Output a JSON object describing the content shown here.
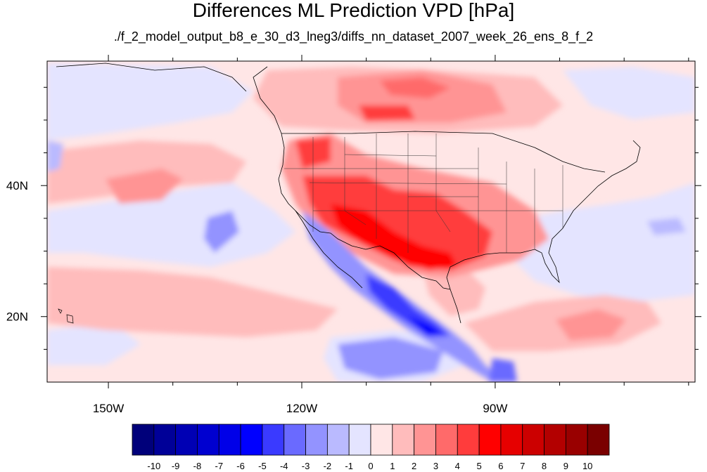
{
  "title": "Differences ML Prediction VPD [hPa]",
  "subtitle": "./f_2_model_output_b8_e_30_d3_lneg3/diffs_nn_dataset_2007_week_26_ens_8_f_2",
  "map": {
    "lon_range": [
      -159.5,
      -59.0
    ],
    "lat_range": [
      10.0,
      59.0
    ],
    "lon_ticks": [
      {
        "value": -150,
        "label": "150W"
      },
      {
        "value": -120,
        "label": "120W"
      },
      {
        "value": -90,
        "label": "90W"
      }
    ],
    "lat_ticks": [
      {
        "value": 40,
        "label": "40N"
      },
      {
        "value": 20,
        "label": "20N"
      }
    ]
  },
  "colorbar": {
    "labels": [
      "-10",
      "-9",
      "-8",
      "-7",
      "-6",
      "-5",
      "-4",
      "-3",
      "-2",
      "-1",
      "0",
      "1",
      "2",
      "3",
      "4",
      "5",
      "6",
      "7",
      "8",
      "9",
      "10"
    ],
    "colors": [
      "#00007a",
      "#000098",
      "#0000b4",
      "#0000d0",
      "#0000e8",
      "#0000ff",
      "#3a3aff",
      "#6a6aff",
      "#9393ff",
      "#babaff",
      "#e4e4ff",
      "#ffe6e6",
      "#ffbcbc",
      "#ff9494",
      "#ff6a6a",
      "#ff3c3c",
      "#ff0000",
      "#e60000",
      "#cc0000",
      "#b30000",
      "#990000",
      "#7a0000"
    ]
  }
}
